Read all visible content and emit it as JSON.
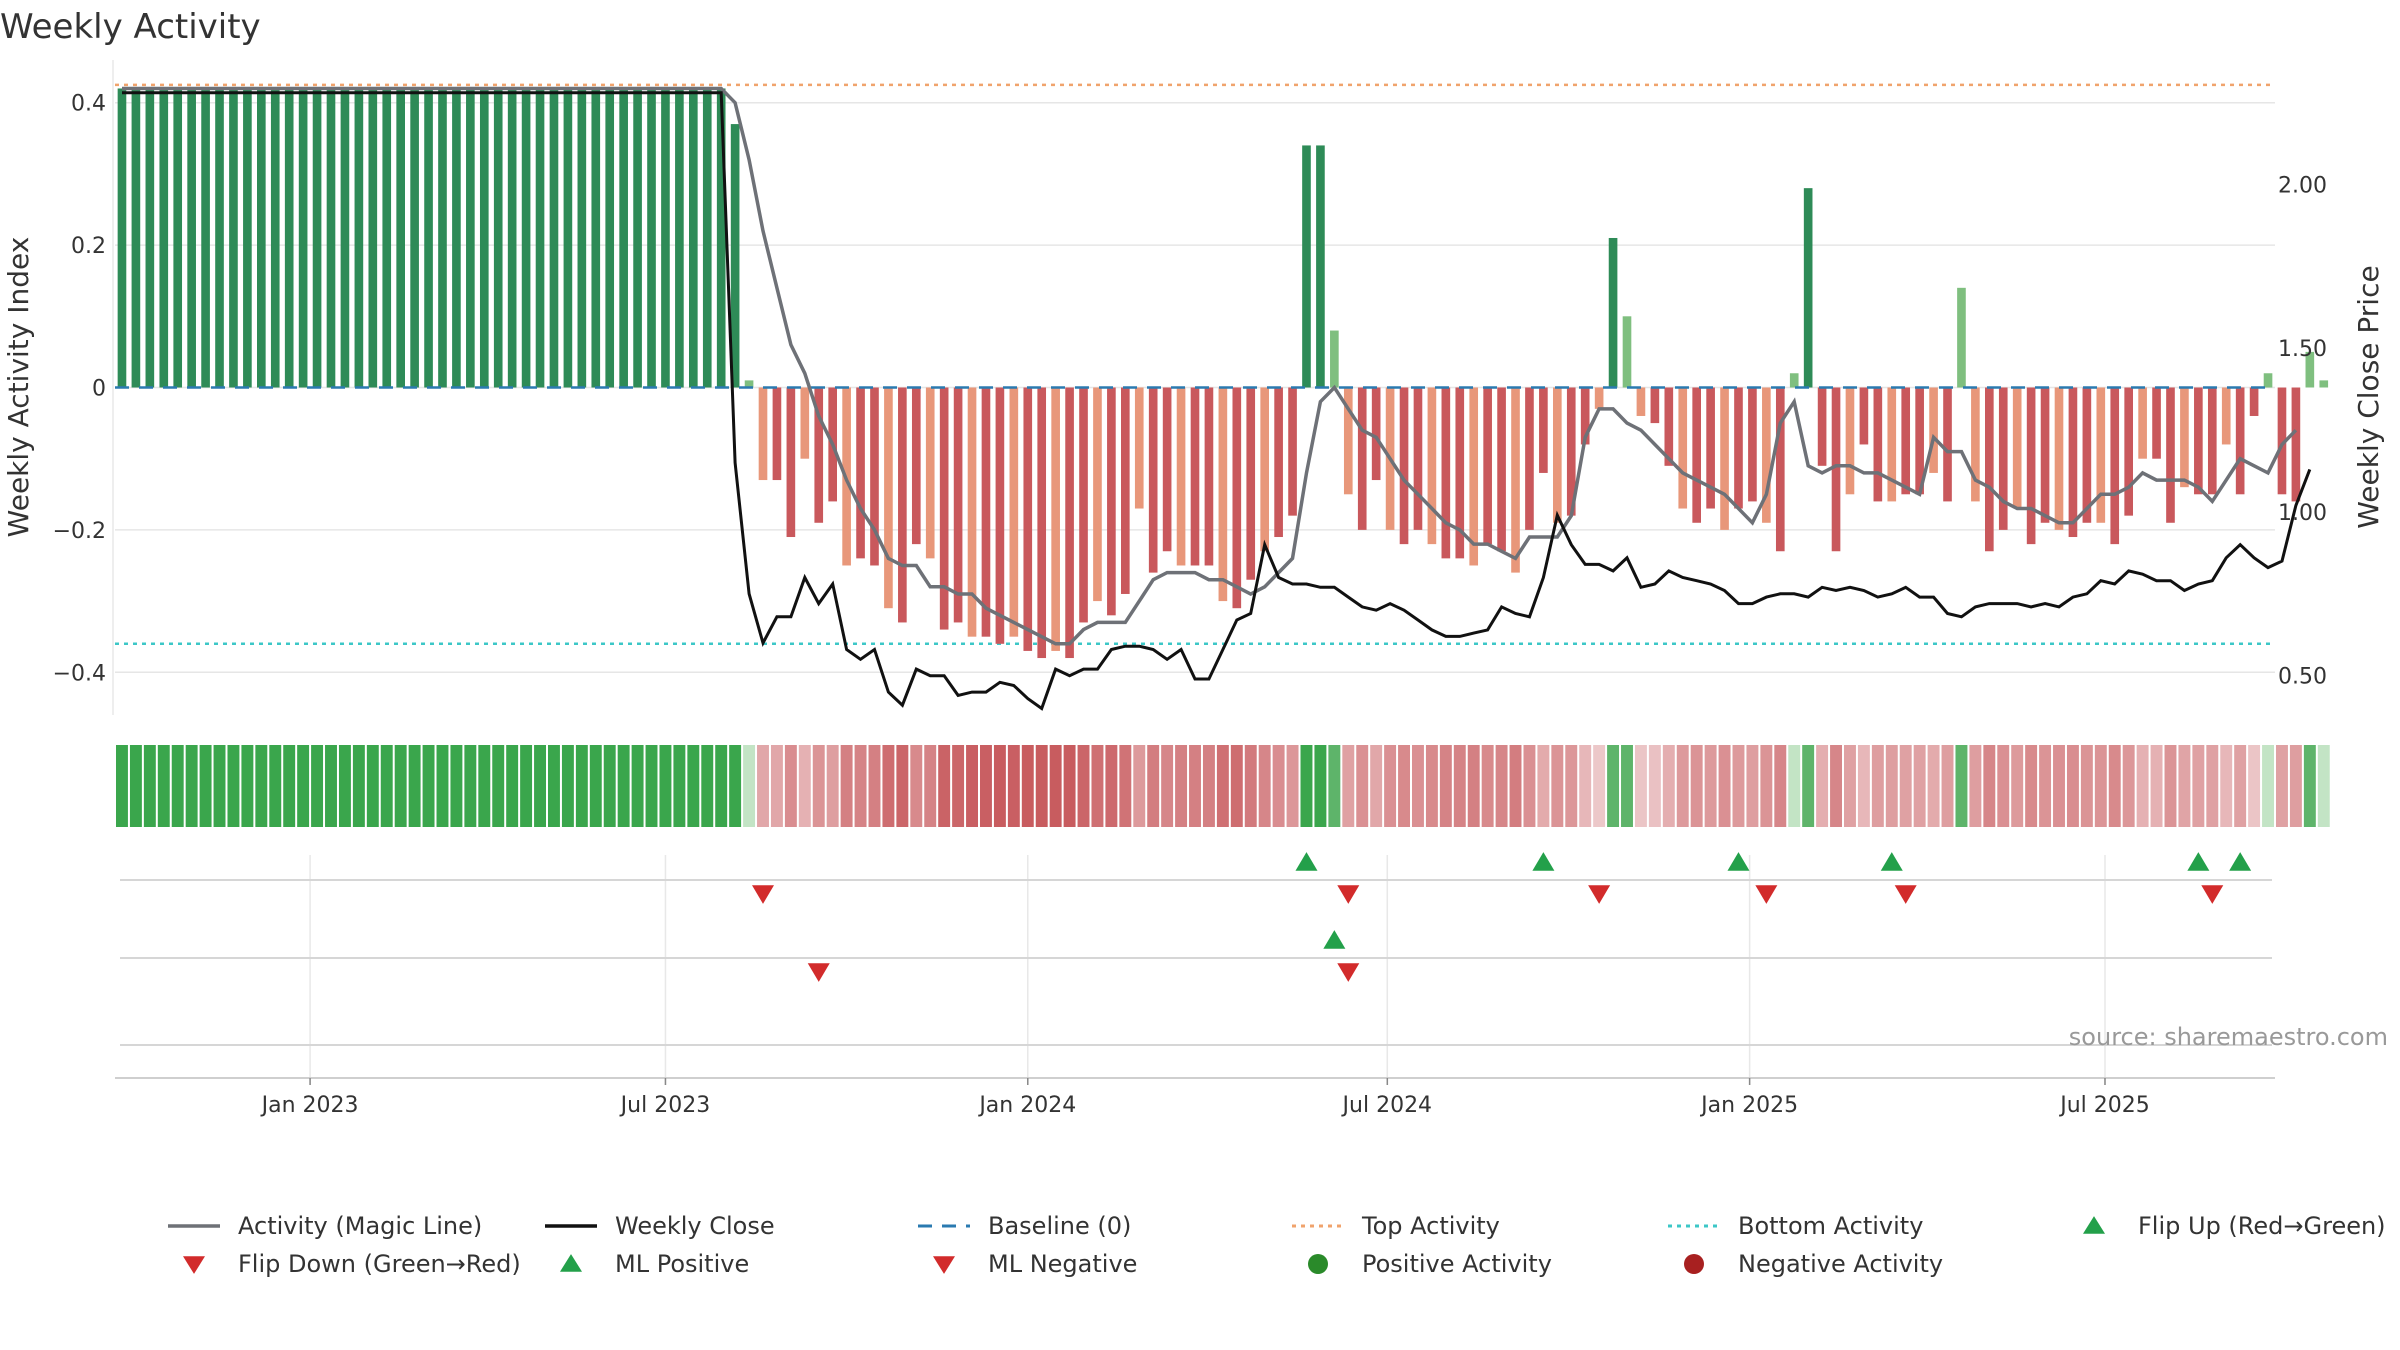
{
  "title": "Weekly Activity",
  "source": "source: sharemaestro.com",
  "colors": {
    "green_dark": "#2e8b57",
    "green_light": "#7fbf7f",
    "red_dark": "#c9585c",
    "red_light": "#e8977a",
    "magic_line": "#6e7177",
    "close_line": "#111111",
    "baseline": "#2a7ab0",
    "top_line": "#f0a36c",
    "bottom_line": "#3cc7c7",
    "flip_up": "#23a04a",
    "flip_down": "#d22b2b",
    "positive_dot": "#2a8a2a",
    "negative_dot": "#a82020"
  },
  "chart_data": {
    "type": "bar",
    "title": "Weekly Activity",
    "ylabel_left": "Weekly Activity Index",
    "ylabel_right": "Weekly Close Price",
    "ylim_left": [
      -0.46,
      0.46
    ],
    "ylim_right": [
      0.38,
      2.38
    ],
    "yticks_left": [
      {
        "value": 0.4,
        "label": "0.4"
      },
      {
        "value": 0.2,
        "label": "0.2"
      },
      {
        "value": 0,
        "label": "0"
      },
      {
        "value": -0.2,
        "label": "−0.2"
      },
      {
        "value": -0.4,
        "label": "−0.4"
      }
    ],
    "yticks_right": [
      {
        "value": 2.0,
        "label": "2.00"
      },
      {
        "value": 1.5,
        "label": "1.50"
      },
      {
        "value": 1.0,
        "label": "1.00"
      },
      {
        "value": 0.5,
        "label": "0.50"
      }
    ],
    "x_start": "2022-09-10",
    "x_weeks": 155,
    "xticks": [
      {
        "week": 14,
        "label": "Jan 2023"
      },
      {
        "week": 39.5,
        "label": "Jul 2023"
      },
      {
        "week": 65.5,
        "label": "Jan 2024"
      },
      {
        "week": 91.3,
        "label": "Jul 2024"
      },
      {
        "week": 117.3,
        "label": "Jan 2025"
      },
      {
        "week": 142.8,
        "label": "Jul 2025"
      }
    ],
    "top_activity": 0.425,
    "bottom_activity": -0.36,
    "baseline": 0,
    "activity": [
      0.42,
      0.42,
      0.42,
      0.42,
      0.42,
      0.42,
      0.42,
      0.42,
      0.42,
      0.42,
      0.42,
      0.42,
      0.42,
      0.42,
      0.42,
      0.42,
      0.42,
      0.42,
      0.42,
      0.42,
      0.42,
      0.42,
      0.42,
      0.42,
      0.42,
      0.42,
      0.42,
      0.42,
      0.42,
      0.42,
      0.42,
      0.42,
      0.42,
      0.42,
      0.42,
      0.42,
      0.42,
      0.42,
      0.42,
      0.42,
      0.42,
      0.42,
      0.42,
      0.42,
      0.37,
      0.01,
      -0.13,
      -0.13,
      -0.21,
      -0.1,
      -0.19,
      -0.16,
      -0.25,
      -0.24,
      -0.25,
      -0.31,
      -0.33,
      -0.22,
      -0.24,
      -0.34,
      -0.33,
      -0.35,
      -0.35,
      -0.36,
      -0.35,
      -0.37,
      -0.38,
      -0.37,
      -0.38,
      -0.33,
      -0.3,
      -0.32,
      -0.29,
      -0.17,
      -0.26,
      -0.23,
      -0.25,
      -0.25,
      -0.25,
      -0.3,
      -0.31,
      -0.27,
      -0.23,
      -0.21,
      -0.18,
      0.34,
      0.34,
      0.08,
      -0.15,
      -0.2,
      -0.13,
      -0.2,
      -0.22,
      -0.2,
      -0.22,
      -0.24,
      -0.24,
      -0.25,
      -0.22,
      -0.23,
      -0.26,
      -0.2,
      -0.12,
      -0.19,
      -0.18,
      -0.08,
      -0.03,
      0.21,
      0.1,
      -0.04,
      -0.05,
      -0.11,
      -0.17,
      -0.19,
      -0.17,
      -0.2,
      -0.17,
      -0.16,
      -0.19,
      -0.23,
      0.02,
      0.28,
      -0.11,
      -0.23,
      -0.15,
      -0.08,
      -0.16,
      -0.16,
      -0.15,
      -0.15,
      -0.12,
      -0.16,
      0.14,
      -0.16,
      -0.23,
      -0.2,
      -0.17,
      -0.22,
      -0.19,
      -0.2,
      -0.21,
      -0.19,
      -0.19,
      -0.22,
      -0.18,
      -0.1,
      -0.1,
      -0.19,
      -0.14,
      -0.15,
      -0.15,
      -0.08,
      -0.15,
      -0.04,
      0.02,
      -0.15,
      -0.16,
      0.05,
      0.01
    ],
    "magic_line": [
      0.42,
      0.42,
      0.42,
      0.42,
      0.42,
      0.42,
      0.42,
      0.42,
      0.42,
      0.42,
      0.42,
      0.42,
      0.42,
      0.42,
      0.42,
      0.42,
      0.42,
      0.42,
      0.42,
      0.42,
      0.42,
      0.42,
      0.42,
      0.42,
      0.42,
      0.42,
      0.42,
      0.42,
      0.42,
      0.42,
      0.42,
      0.42,
      0.42,
      0.42,
      0.42,
      0.42,
      0.42,
      0.42,
      0.42,
      0.42,
      0.42,
      0.42,
      0.42,
      0.42,
      0.4,
      0.32,
      0.22,
      0.14,
      0.06,
      0.02,
      -0.04,
      -0.08,
      -0.13,
      -0.17,
      -0.2,
      -0.24,
      -0.25,
      -0.25,
      -0.28,
      -0.28,
      -0.29,
      -0.29,
      -0.31,
      -0.32,
      -0.33,
      -0.34,
      -0.35,
      -0.36,
      -0.36,
      -0.34,
      -0.33,
      -0.33,
      -0.33,
      -0.3,
      -0.27,
      -0.26,
      -0.26,
      -0.26,
      -0.27,
      -0.27,
      -0.28,
      -0.29,
      -0.28,
      -0.26,
      -0.24,
      -0.12,
      -0.02,
      0,
      -0.03,
      -0.06,
      -0.07,
      -0.1,
      -0.13,
      -0.15,
      -0.17,
      -0.19,
      -0.2,
      -0.22,
      -0.22,
      -0.23,
      -0.24,
      -0.21,
      -0.21,
      -0.21,
      -0.18,
      -0.07,
      -0.03,
      -0.03,
      -0.05,
      -0.06,
      -0.08,
      -0.1,
      -0.12,
      -0.13,
      -0.14,
      -0.15,
      -0.17,
      -0.19,
      -0.15,
      -0.05,
      -0.02,
      -0.11,
      -0.12,
      -0.11,
      -0.11,
      -0.12,
      -0.12,
      -0.13,
      -0.14,
      -0.15,
      -0.07,
      -0.09,
      -0.09,
      -0.13,
      -0.14,
      -0.16,
      -0.17,
      -0.17,
      -0.18,
      -0.19,
      -0.19,
      -0.17,
      -0.15,
      -0.15,
      -0.14,
      -0.12,
      -0.13,
      -0.13,
      -0.13,
      -0.14,
      -0.16,
      -0.13,
      -0.1,
      -0.11,
      -0.12,
      -0.08,
      -0.06
    ],
    "weekly_close": [
      2.28,
      2.28,
      2.28,
      2.28,
      2.28,
      2.28,
      2.28,
      2.28,
      2.28,
      2.28,
      2.28,
      2.28,
      2.28,
      2.28,
      2.28,
      2.28,
      2.28,
      2.28,
      2.28,
      2.28,
      2.28,
      2.28,
      2.28,
      2.28,
      2.28,
      2.28,
      2.28,
      2.28,
      2.28,
      2.28,
      2.28,
      2.28,
      2.28,
      2.28,
      2.28,
      2.28,
      2.28,
      2.28,
      2.28,
      2.28,
      2.28,
      2.28,
      2.28,
      2.28,
      1.15,
      0.75,
      0.6,
      0.68,
      0.68,
      0.8,
      0.72,
      0.78,
      0.58,
      0.55,
      0.58,
      0.45,
      0.41,
      0.52,
      0.5,
      0.5,
      0.44,
      0.45,
      0.45,
      0.48,
      0.47,
      0.43,
      0.4,
      0.52,
      0.5,
      0.52,
      0.52,
      0.58,
      0.59,
      0.59,
      0.58,
      0.55,
      0.58,
      0.49,
      0.49,
      0.58,
      0.67,
      0.69,
      0.9,
      0.8,
      0.78,
      0.78,
      0.77,
      0.77,
      0.74,
      0.71,
      0.7,
      0.72,
      0.7,
      0.67,
      0.64,
      0.62,
      0.62,
      0.63,
      0.64,
      0.71,
      0.69,
      0.68,
      0.8,
      0.99,
      0.9,
      0.84,
      0.84,
      0.82,
      0.86,
      0.77,
      0.78,
      0.82,
      0.8,
      0.79,
      0.78,
      0.76,
      0.72,
      0.72,
      0.74,
      0.75,
      0.75,
      0.74,
      0.77,
      0.76,
      0.77,
      0.76,
      0.74,
      0.75,
      0.77,
      0.74,
      0.74,
      0.69,
      0.68,
      0.71,
      0.72,
      0.72,
      0.72,
      0.71,
      0.72,
      0.71,
      0.74,
      0.75,
      0.79,
      0.78,
      0.82,
      0.81,
      0.79,
      0.79,
      0.76,
      0.78,
      0.79,
      0.86,
      0.9,
      0.86,
      0.83,
      0.85,
      1.02,
      1.13
    ],
    "flip_up": [
      85.5,
      102.5,
      116.5,
      127.5,
      149.5,
      152.5
    ],
    "flip_down": [
      46.5,
      88.5,
      106.5,
      118.5,
      128.5,
      150.5
    ],
    "ml_positive": [
      87.5
    ],
    "ml_negative": [
      50.5,
      88.5
    ]
  },
  "legend": [
    {
      "label": "Activity (Magic Line)",
      "key": "magic"
    },
    {
      "label": "Weekly Close",
      "key": "close"
    },
    {
      "label": "Baseline (0)",
      "key": "baseline"
    },
    {
      "label": "Top Activity",
      "key": "top"
    },
    {
      "label": "Bottom Activity",
      "key": "bottom"
    },
    {
      "label": "Flip Up (Red→Green)",
      "key": "flipup"
    },
    {
      "label": "Flip Down (Green→Red)",
      "key": "flipdown"
    },
    {
      "label": "ML Positive",
      "key": "mlpos"
    },
    {
      "label": "ML Negative",
      "key": "mlneg"
    },
    {
      "label": "Positive Activity",
      "key": "posdot"
    },
    {
      "label": "Negative Activity",
      "key": "negdot"
    }
  ]
}
